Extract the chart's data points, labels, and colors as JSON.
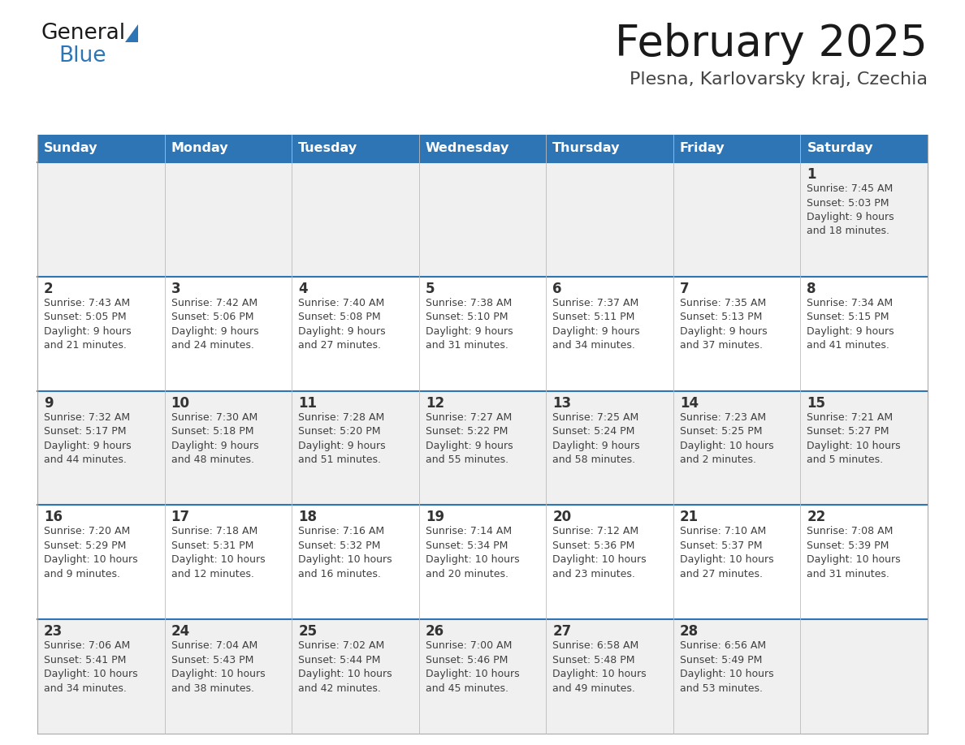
{
  "title": "February 2025",
  "subtitle": "Plesna, Karlovarsky kraj, Czechia",
  "header_color": "#2E75B6",
  "header_text_color": "#FFFFFF",
  "day_names": [
    "Sunday",
    "Monday",
    "Tuesday",
    "Wednesday",
    "Thursday",
    "Friday",
    "Saturday"
  ],
  "background_color": "#FFFFFF",
  "row_colors": [
    "#F0F0F0",
    "#FFFFFF",
    "#F0F0F0",
    "#FFFFFF",
    "#F0F0F0"
  ],
  "divider_color": "#2E75B6",
  "text_color": "#404040",
  "date_color": "#333333",
  "days": [
    {
      "date": 1,
      "col": 6,
      "row": 0,
      "sunrise": "7:45 AM",
      "sunset": "5:03 PM",
      "daylight": "9 hours and 18 minutes."
    },
    {
      "date": 2,
      "col": 0,
      "row": 1,
      "sunrise": "7:43 AM",
      "sunset": "5:05 PM",
      "daylight": "9 hours and 21 minutes."
    },
    {
      "date": 3,
      "col": 1,
      "row": 1,
      "sunrise": "7:42 AM",
      "sunset": "5:06 PM",
      "daylight": "9 hours and 24 minutes."
    },
    {
      "date": 4,
      "col": 2,
      "row": 1,
      "sunrise": "7:40 AM",
      "sunset": "5:08 PM",
      "daylight": "9 hours and 27 minutes."
    },
    {
      "date": 5,
      "col": 3,
      "row": 1,
      "sunrise": "7:38 AM",
      "sunset": "5:10 PM",
      "daylight": "9 hours and 31 minutes."
    },
    {
      "date": 6,
      "col": 4,
      "row": 1,
      "sunrise": "7:37 AM",
      "sunset": "5:11 PM",
      "daylight": "9 hours and 34 minutes."
    },
    {
      "date": 7,
      "col": 5,
      "row": 1,
      "sunrise": "7:35 AM",
      "sunset": "5:13 PM",
      "daylight": "9 hours and 37 minutes."
    },
    {
      "date": 8,
      "col": 6,
      "row": 1,
      "sunrise": "7:34 AM",
      "sunset": "5:15 PM",
      "daylight": "9 hours and 41 minutes."
    },
    {
      "date": 9,
      "col": 0,
      "row": 2,
      "sunrise": "7:32 AM",
      "sunset": "5:17 PM",
      "daylight": "9 hours and 44 minutes."
    },
    {
      "date": 10,
      "col": 1,
      "row": 2,
      "sunrise": "7:30 AM",
      "sunset": "5:18 PM",
      "daylight": "9 hours and 48 minutes."
    },
    {
      "date": 11,
      "col": 2,
      "row": 2,
      "sunrise": "7:28 AM",
      "sunset": "5:20 PM",
      "daylight": "9 hours and 51 minutes."
    },
    {
      "date": 12,
      "col": 3,
      "row": 2,
      "sunrise": "7:27 AM",
      "sunset": "5:22 PM",
      "daylight": "9 hours and 55 minutes."
    },
    {
      "date": 13,
      "col": 4,
      "row": 2,
      "sunrise": "7:25 AM",
      "sunset": "5:24 PM",
      "daylight": "9 hours and 58 minutes."
    },
    {
      "date": 14,
      "col": 5,
      "row": 2,
      "sunrise": "7:23 AM",
      "sunset": "5:25 PM",
      "daylight": "10 hours and 2 minutes."
    },
    {
      "date": 15,
      "col": 6,
      "row": 2,
      "sunrise": "7:21 AM",
      "sunset": "5:27 PM",
      "daylight": "10 hours and 5 minutes."
    },
    {
      "date": 16,
      "col": 0,
      "row": 3,
      "sunrise": "7:20 AM",
      "sunset": "5:29 PM",
      "daylight": "10 hours and 9 minutes."
    },
    {
      "date": 17,
      "col": 1,
      "row": 3,
      "sunrise": "7:18 AM",
      "sunset": "5:31 PM",
      "daylight": "10 hours and 12 minutes."
    },
    {
      "date": 18,
      "col": 2,
      "row": 3,
      "sunrise": "7:16 AM",
      "sunset": "5:32 PM",
      "daylight": "10 hours and 16 minutes."
    },
    {
      "date": 19,
      "col": 3,
      "row": 3,
      "sunrise": "7:14 AM",
      "sunset": "5:34 PM",
      "daylight": "10 hours and 20 minutes."
    },
    {
      "date": 20,
      "col": 4,
      "row": 3,
      "sunrise": "7:12 AM",
      "sunset": "5:36 PM",
      "daylight": "10 hours and 23 minutes."
    },
    {
      "date": 21,
      "col": 5,
      "row": 3,
      "sunrise": "7:10 AM",
      "sunset": "5:37 PM",
      "daylight": "10 hours and 27 minutes."
    },
    {
      "date": 22,
      "col": 6,
      "row": 3,
      "sunrise": "7:08 AM",
      "sunset": "5:39 PM",
      "daylight": "10 hours and 31 minutes."
    },
    {
      "date": 23,
      "col": 0,
      "row": 4,
      "sunrise": "7:06 AM",
      "sunset": "5:41 PM",
      "daylight": "10 hours and 34 minutes."
    },
    {
      "date": 24,
      "col": 1,
      "row": 4,
      "sunrise": "7:04 AM",
      "sunset": "5:43 PM",
      "daylight": "10 hours and 38 minutes."
    },
    {
      "date": 25,
      "col": 2,
      "row": 4,
      "sunrise": "7:02 AM",
      "sunset": "5:44 PM",
      "daylight": "10 hours and 42 minutes."
    },
    {
      "date": 26,
      "col": 3,
      "row": 4,
      "sunrise": "7:00 AM",
      "sunset": "5:46 PM",
      "daylight": "10 hours and 45 minutes."
    },
    {
      "date": 27,
      "col": 4,
      "row": 4,
      "sunrise": "6:58 AM",
      "sunset": "5:48 PM",
      "daylight": "10 hours and 49 minutes."
    },
    {
      "date": 28,
      "col": 5,
      "row": 4,
      "sunrise": "6:56 AM",
      "sunset": "5:49 PM",
      "daylight": "10 hours and 53 minutes."
    }
  ]
}
